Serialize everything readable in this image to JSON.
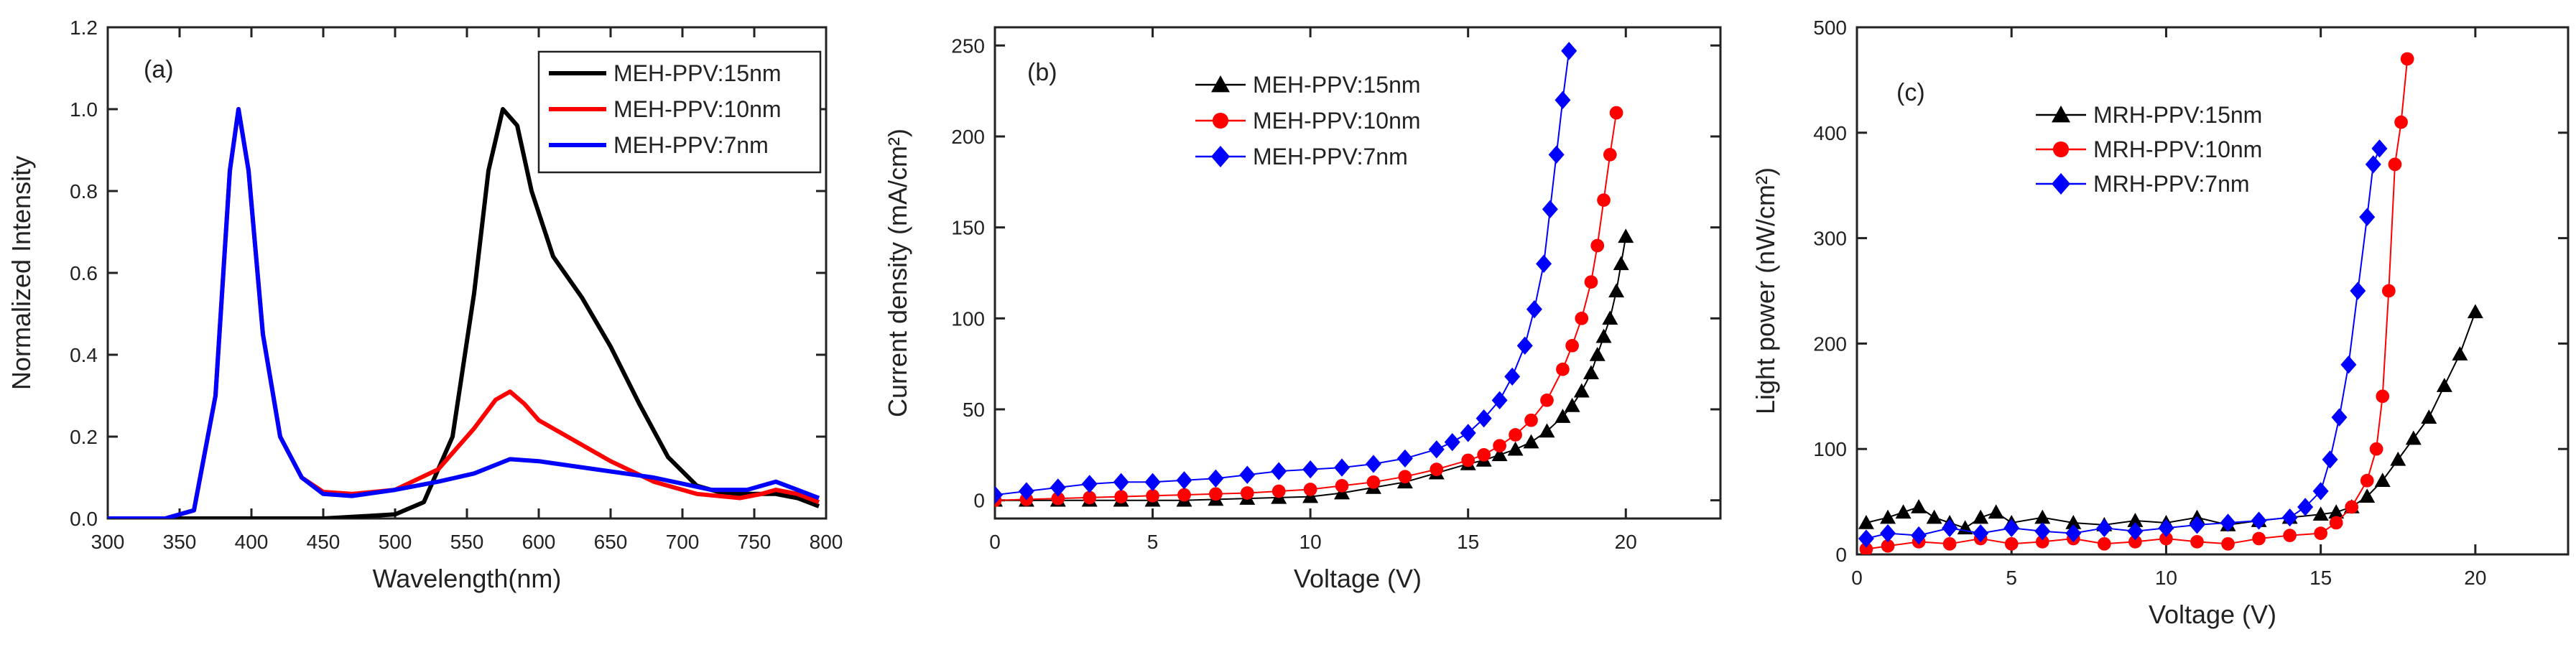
{
  "chart_data": [
    {
      "panel_label": "(a)",
      "type": "line",
      "xlabel": "Wavelength(nm)",
      "ylabel": "Normalized Intensity",
      "xlim": [
        300,
        800
      ],
      "ylim": [
        0,
        1.2
      ],
      "xticks": [
        300,
        350,
        400,
        450,
        500,
        550,
        600,
        650,
        700,
        750,
        800
      ],
      "yticks": [
        0.0,
        0.2,
        0.4,
        0.6,
        0.8,
        1.0,
        1.2
      ],
      "ytick_labels": [
        "0.0",
        "0.2",
        "0.4",
        "0.6",
        "0.8",
        "1.0",
        "1.2"
      ],
      "legend_position": "top-right",
      "series": [
        {
          "name": "MEH-PPV:15nm",
          "color": "#000000",
          "x": [
            300,
            450,
            500,
            520,
            540,
            555,
            565,
            575,
            585,
            595,
            610,
            630,
            650,
            670,
            690,
            710,
            730,
            750,
            765,
            780,
            795
          ],
          "y": [
            0.0,
            0.0,
            0.01,
            0.04,
            0.2,
            0.55,
            0.85,
            1.0,
            0.96,
            0.8,
            0.64,
            0.54,
            0.42,
            0.28,
            0.15,
            0.08,
            0.06,
            0.06,
            0.06,
            0.05,
            0.03
          ]
        },
        {
          "name": "MEH-PPV:10nm",
          "color": "#ff0000",
          "x": [
            300,
            340,
            360,
            375,
            385,
            391,
            398,
            408,
            420,
            435,
            450,
            470,
            500,
            530,
            555,
            570,
            580,
            590,
            600,
            620,
            650,
            680,
            710,
            740,
            755,
            765,
            780,
            795
          ],
          "y": [
            0.0,
            0.0,
            0.02,
            0.3,
            0.85,
            1.0,
            0.85,
            0.45,
            0.2,
            0.1,
            0.065,
            0.06,
            0.07,
            0.12,
            0.22,
            0.29,
            0.31,
            0.28,
            0.24,
            0.2,
            0.14,
            0.09,
            0.06,
            0.05,
            0.06,
            0.07,
            0.06,
            0.04
          ]
        },
        {
          "name": "MEH-PPV:7nm",
          "color": "#0000ff",
          "x": [
            300,
            340,
            360,
            375,
            385,
            391,
            398,
            408,
            420,
            435,
            450,
            470,
            500,
            530,
            555,
            580,
            600,
            640,
            680,
            720,
            745,
            765,
            780,
            795
          ],
          "y": [
            0.0,
            0.0,
            0.02,
            0.3,
            0.85,
            1.0,
            0.85,
            0.45,
            0.2,
            0.1,
            0.06,
            0.055,
            0.07,
            0.09,
            0.11,
            0.145,
            0.14,
            0.12,
            0.1,
            0.07,
            0.07,
            0.09,
            0.07,
            0.05
          ]
        }
      ]
    },
    {
      "panel_label": "(b)",
      "type": "scatter",
      "xlabel": "Voltage (V)",
      "ylabel": "Current density (mA/cm²)",
      "xlim": [
        0,
        23
      ],
      "ylim": [
        -10,
        260
      ],
      "xticks": [
        0,
        5,
        10,
        15,
        20
      ],
      "yticks": [
        0,
        50,
        100,
        150,
        200,
        250
      ],
      "legend_position": "top-left",
      "series": [
        {
          "name": "MEH-PPV:15nm",
          "color": "#000000",
          "marker": "triangle",
          "x": [
            0,
            1,
            2,
            3,
            4,
            5,
            6,
            7,
            8,
            9,
            10,
            11,
            12,
            13,
            14,
            15,
            15.5,
            16,
            16.5,
            17,
            17.5,
            18,
            18.3,
            18.6,
            18.9,
            19.1,
            19.3,
            19.5,
            19.7,
            19.85,
            20
          ],
          "y": [
            0,
            0,
            0,
            0,
            0,
            0,
            0,
            0.5,
            1,
            1.5,
            2,
            4,
            7,
            10,
            15,
            20,
            22,
            25,
            28,
            32,
            38,
            46,
            52,
            60,
            70,
            80,
            90,
            100,
            115,
            130,
            145
          ]
        },
        {
          "name": "MEH-PPV:10nm",
          "color": "#ff0000",
          "marker": "circle",
          "x": [
            0,
            1,
            2,
            3,
            4,
            5,
            6,
            7,
            8,
            9,
            10,
            11,
            12,
            13,
            14,
            15,
            15.5,
            16,
            16.5,
            17,
            17.5,
            18,
            18.3,
            18.6,
            18.9,
            19.1,
            19.3,
            19.5,
            19.7
          ],
          "y": [
            0,
            0.5,
            1,
            1.5,
            2,
            2.5,
            3,
            3.5,
            4,
            5,
            6,
            8,
            10,
            13,
            17,
            22,
            25,
            30,
            36,
            44,
            55,
            72,
            85,
            100,
            120,
            140,
            165,
            190,
            213
          ]
        },
        {
          "name": "MEH-PPV:7nm",
          "color": "#0000ff",
          "marker": "diamond",
          "x": [
            0,
            1,
            2,
            3,
            4,
            5,
            6,
            7,
            8,
            9,
            10,
            11,
            12,
            13,
            14,
            14.5,
            15,
            15.5,
            16,
            16.4,
            16.8,
            17.1,
            17.4,
            17.6,
            17.8,
            18,
            18.2
          ],
          "y": [
            3,
            5,
            7,
            9,
            10,
            10,
            11,
            12,
            14,
            16,
            17,
            18,
            20,
            23,
            28,
            32,
            37,
            45,
            55,
            68,
            85,
            105,
            130,
            160,
            190,
            220,
            247
          ]
        }
      ]
    },
    {
      "panel_label": "(c)",
      "type": "scatter",
      "xlabel": "Voltage (V)",
      "ylabel": "Light power (nW/cm²)",
      "xlim": [
        0,
        23
      ],
      "ylim": [
        0,
        500
      ],
      "xticks": [
        0,
        5,
        10,
        15,
        20
      ],
      "yticks": [
        0,
        100,
        200,
        300,
        400,
        500
      ],
      "legend_position": "top-left",
      "series": [
        {
          "name": "MRH-PPV:15nm",
          "color": "#000000",
          "marker": "triangle",
          "x": [
            0.3,
            1,
            1.5,
            2,
            2.5,
            3,
            3.5,
            4,
            4.5,
            5,
            6,
            7,
            8,
            9,
            10,
            11,
            12,
            13,
            14,
            15,
            15.5,
            16,
            16.5,
            17,
            17.5,
            18,
            18.5,
            19,
            19.5,
            20
          ],
          "y": [
            30,
            35,
            40,
            45,
            35,
            30,
            25,
            35,
            40,
            30,
            35,
            30,
            28,
            32,
            30,
            35,
            28,
            32,
            35,
            38,
            40,
            45,
            55,
            70,
            90,
            110,
            130,
            160,
            190,
            230
          ]
        },
        {
          "name": "MRH-PPV:10nm",
          "color": "#ff0000",
          "marker": "circle",
          "x": [
            0.3,
            1,
            2,
            3,
            4,
            5,
            6,
            7,
            8,
            9,
            10,
            11,
            12,
            13,
            14,
            15,
            15.5,
            16,
            16.5,
            16.8,
            17,
            17.2,
            17.4,
            17.6,
            17.8
          ],
          "y": [
            5,
            8,
            12,
            10,
            15,
            10,
            12,
            15,
            10,
            12,
            15,
            12,
            10,
            15,
            18,
            20,
            30,
            45,
            70,
            100,
            150,
            250,
            370,
            410,
            470
          ]
        },
        {
          "name": "MRH-PPV:7nm",
          "color": "#0000ff",
          "marker": "diamond",
          "x": [
            0.3,
            1,
            2,
            3,
            4,
            5,
            6,
            7,
            8,
            9,
            10,
            11,
            12,
            13,
            14,
            14.5,
            15,
            15.3,
            15.6,
            15.9,
            16.2,
            16.5,
            16.7,
            16.9
          ],
          "y": [
            15,
            20,
            18,
            25,
            20,
            25,
            22,
            20,
            25,
            22,
            25,
            28,
            30,
            32,
            35,
            45,
            60,
            90,
            130,
            180,
            250,
            320,
            370,
            385
          ]
        }
      ]
    }
  ]
}
